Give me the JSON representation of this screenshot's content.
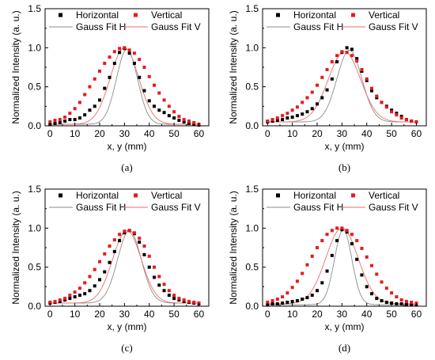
{
  "chart_data": [
    {
      "type": "scatter",
      "panel_label": "(a)",
      "xlabel": "x, y (mm)",
      "ylabel": "Normalized Intensity (a. u.)",
      "xlim": [
        -2,
        64
      ],
      "ylim": [
        0,
        1.5
      ],
      "xticks": [
        0,
        10,
        20,
        30,
        40,
        50,
        60
      ],
      "yticks": [
        0.0,
        0.5,
        1.0,
        1.5
      ],
      "grid": false,
      "legend_position": "top",
      "series": [
        {
          "name": "Horizontal",
          "kind": "points",
          "color": "#000000",
          "x": [
            0,
            2,
            4,
            6,
            8,
            10,
            12,
            14,
            16,
            18,
            20,
            22,
            24,
            26,
            28,
            30,
            32,
            34,
            36,
            38,
            40,
            42,
            44,
            46,
            48,
            50,
            52,
            54,
            56,
            58,
            60
          ],
          "y": [
            0.02,
            0.03,
            0.04,
            0.06,
            0.08,
            0.08,
            0.1,
            0.14,
            0.2,
            0.25,
            0.33,
            0.48,
            0.62,
            0.8,
            0.94,
            0.99,
            0.93,
            0.8,
            0.62,
            0.45,
            0.32,
            0.25,
            0.2,
            0.17,
            0.13,
            0.1,
            0.07,
            0.05,
            0.03,
            0.02,
            0.01
          ]
        },
        {
          "name": "Vertical",
          "kind": "points",
          "color": "#e8191c",
          "x": [
            0,
            2,
            4,
            6,
            8,
            10,
            12,
            14,
            16,
            18,
            20,
            22,
            24,
            26,
            28,
            30,
            32,
            34,
            36,
            38,
            40,
            42,
            44,
            46,
            48,
            50,
            52,
            54,
            56,
            58,
            60
          ],
          "y": [
            0.05,
            0.07,
            0.08,
            0.11,
            0.16,
            0.22,
            0.3,
            0.4,
            0.5,
            0.6,
            0.7,
            0.8,
            0.88,
            0.95,
            0.99,
            1.0,
            0.97,
            0.93,
            0.85,
            0.75,
            0.63,
            0.52,
            0.42,
            0.33,
            0.25,
            0.18,
            0.12,
            0.08,
            0.06,
            0.04,
            0.02
          ]
        },
        {
          "name": "Gauss Fit H",
          "kind": "gauss",
          "color": "#8c8c8c",
          "y0": 0.02,
          "A": 0.96,
          "xc": 31,
          "w": 8.5
        },
        {
          "name": "Gauss Fit V",
          "kind": "gauss",
          "color": "#f06a6a",
          "y0": 0.02,
          "A": 0.98,
          "xc": 30,
          "w": 11.5
        }
      ]
    },
    {
      "type": "scatter",
      "panel_label": "(b)",
      "xlabel": "x, y (mm)",
      "ylabel": "Normalized Intensity (a. u.)",
      "xlim": [
        -2,
        64
      ],
      "ylim": [
        0,
        1.5
      ],
      "xticks": [
        0,
        10,
        20,
        30,
        40,
        50,
        60
      ],
      "yticks": [
        0.0,
        0.5,
        1.0,
        1.5
      ],
      "grid": false,
      "legend_position": "top",
      "series": [
        {
          "name": "Horizontal",
          "kind": "points",
          "color": "#000000",
          "x": [
            0,
            2,
            4,
            6,
            8,
            10,
            12,
            14,
            16,
            18,
            20,
            22,
            24,
            26,
            28,
            30,
            32,
            34,
            36,
            38,
            40,
            42,
            44,
            46,
            48,
            50,
            52,
            54,
            56,
            58,
            60
          ],
          "y": [
            0.05,
            0.06,
            0.07,
            0.08,
            0.1,
            0.11,
            0.13,
            0.15,
            0.18,
            0.22,
            0.28,
            0.36,
            0.46,
            0.6,
            0.82,
            0.94,
            1.0,
            0.98,
            0.86,
            0.7,
            0.58,
            0.45,
            0.36,
            0.3,
            0.25,
            0.2,
            0.16,
            0.12,
            0.08,
            0.06,
            0.05
          ]
        },
        {
          "name": "Vertical",
          "kind": "points",
          "color": "#e8191c",
          "x": [
            0,
            2,
            4,
            6,
            8,
            10,
            12,
            14,
            16,
            18,
            20,
            22,
            24,
            26,
            28,
            30,
            32,
            34,
            36,
            38,
            40,
            42,
            44,
            46,
            48,
            50,
            52,
            54,
            56,
            58,
            60
          ],
          "y": [
            0.06,
            0.08,
            0.1,
            0.13,
            0.16,
            0.2,
            0.24,
            0.3,
            0.36,
            0.43,
            0.52,
            0.62,
            0.72,
            0.82,
            0.9,
            0.95,
            0.94,
            0.9,
            0.83,
            0.72,
            0.6,
            0.48,
            0.38,
            0.3,
            0.24,
            0.18,
            0.14,
            0.1,
            0.08,
            0.06,
            0.05
          ]
        },
        {
          "name": "Gauss Fit H",
          "kind": "gauss",
          "color": "#8c8c8c",
          "y0": 0.05,
          "A": 0.92,
          "xc": 33,
          "w": 10
        },
        {
          "name": "Gauss Fit V",
          "kind": "gauss",
          "color": "#f06a6a",
          "y0": 0.05,
          "A": 0.9,
          "xc": 31,
          "w": 13
        }
      ]
    },
    {
      "type": "scatter",
      "panel_label": "(c)",
      "xlabel": "x, y (mm)",
      "ylabel": "Normalized Intensity (a. u.)",
      "xlim": [
        -2,
        64
      ],
      "ylim": [
        0,
        1.5
      ],
      "xticks": [
        0,
        10,
        20,
        30,
        40,
        50,
        60
      ],
      "yticks": [
        0.0,
        0.5,
        1.0,
        1.5
      ],
      "grid": false,
      "legend_position": "top",
      "series": [
        {
          "name": "Horizontal",
          "kind": "points",
          "color": "#000000",
          "x": [
            0,
            2,
            4,
            6,
            8,
            10,
            12,
            14,
            16,
            18,
            20,
            22,
            24,
            26,
            28,
            30,
            32,
            34,
            36,
            38,
            40,
            42,
            44,
            46,
            48,
            50,
            52,
            54,
            56,
            58,
            60
          ],
          "y": [
            0.04,
            0.05,
            0.06,
            0.08,
            0.1,
            0.12,
            0.14,
            0.16,
            0.2,
            0.26,
            0.34,
            0.44,
            0.56,
            0.7,
            0.84,
            0.94,
            0.97,
            0.93,
            0.82,
            0.66,
            0.5,
            0.37,
            0.27,
            0.2,
            0.14,
            0.1,
            0.08,
            0.06,
            0.05,
            0.04,
            0.03
          ]
        },
        {
          "name": "Vertical",
          "kind": "points",
          "color": "#e8191c",
          "x": [
            0,
            2,
            4,
            6,
            8,
            10,
            12,
            14,
            16,
            18,
            20,
            22,
            24,
            26,
            28,
            30,
            32,
            34,
            36,
            38,
            40,
            42,
            44,
            46,
            48,
            50,
            52,
            54,
            56,
            58,
            60
          ],
          "y": [
            0.05,
            0.06,
            0.08,
            0.1,
            0.14,
            0.18,
            0.23,
            0.3,
            0.38,
            0.47,
            0.57,
            0.67,
            0.77,
            0.85,
            0.92,
            0.96,
            0.97,
            0.94,
            0.87,
            0.77,
            0.64,
            0.5,
            0.38,
            0.28,
            0.2,
            0.14,
            0.1,
            0.08,
            0.06,
            0.05,
            0.04
          ]
        },
        {
          "name": "Gauss Fit H",
          "kind": "gauss",
          "color": "#8c8c8c",
          "y0": 0.04,
          "A": 0.93,
          "xc": 32,
          "w": 9.5
        },
        {
          "name": "Gauss Fit V",
          "kind": "gauss",
          "color": "#f06a6a",
          "y0": 0.04,
          "A": 0.93,
          "xc": 31,
          "w": 11.5
        }
      ]
    },
    {
      "type": "scatter",
      "panel_label": "(d)",
      "xlabel": "x, y (mm)",
      "ylabel": "Normalized Intensity (a. u.)",
      "xlim": [
        -2,
        64
      ],
      "ylim": [
        0,
        1.5
      ],
      "xticks": [
        0,
        10,
        20,
        30,
        40,
        50,
        60
      ],
      "yticks": [
        0.0,
        0.5,
        1.0,
        1.5
      ],
      "grid": false,
      "legend_position": "top",
      "series": [
        {
          "name": "Horizontal",
          "kind": "points",
          "color": "#000000",
          "x": [
            0,
            2,
            4,
            6,
            8,
            10,
            12,
            14,
            16,
            18,
            20,
            22,
            24,
            26,
            28,
            30,
            32,
            34,
            36,
            38,
            40,
            42,
            44,
            46,
            48,
            50,
            52,
            54,
            56,
            58,
            60
          ],
          "y": [
            0.02,
            0.03,
            0.03,
            0.04,
            0.05,
            0.06,
            0.07,
            0.09,
            0.11,
            0.14,
            0.2,
            0.3,
            0.45,
            0.65,
            0.84,
            0.98,
            0.95,
            0.8,
            0.6,
            0.4,
            0.25,
            0.16,
            0.1,
            0.07,
            0.05,
            0.04,
            0.03,
            0.03,
            0.02,
            0.02,
            0.02
          ]
        },
        {
          "name": "Vertical",
          "kind": "points",
          "color": "#e8191c",
          "x": [
            0,
            2,
            4,
            6,
            8,
            10,
            12,
            14,
            16,
            18,
            20,
            22,
            24,
            26,
            28,
            30,
            32,
            34,
            36,
            38,
            40,
            42,
            44,
            46,
            48,
            50,
            52,
            54,
            56,
            58,
            60
          ],
          "y": [
            0.05,
            0.07,
            0.09,
            0.12,
            0.17,
            0.24,
            0.32,
            0.42,
            0.53,
            0.64,
            0.75,
            0.84,
            0.92,
            0.97,
            1.0,
            1.0,
            0.97,
            0.92,
            0.84,
            0.74,
            0.63,
            0.52,
            0.41,
            0.31,
            0.23,
            0.17,
            0.12,
            0.08,
            0.06,
            0.05,
            0.04
          ]
        },
        {
          "name": "Gauss Fit H",
          "kind": "gauss",
          "color": "#8c8c8c",
          "y0": 0.02,
          "A": 0.96,
          "xc": 30.5,
          "w": 7
        },
        {
          "name": "Gauss Fit V",
          "kind": "gauss",
          "color": "#f06a6a",
          "y0": 0.03,
          "A": 0.97,
          "xc": 30,
          "w": 13
        }
      ]
    }
  ]
}
